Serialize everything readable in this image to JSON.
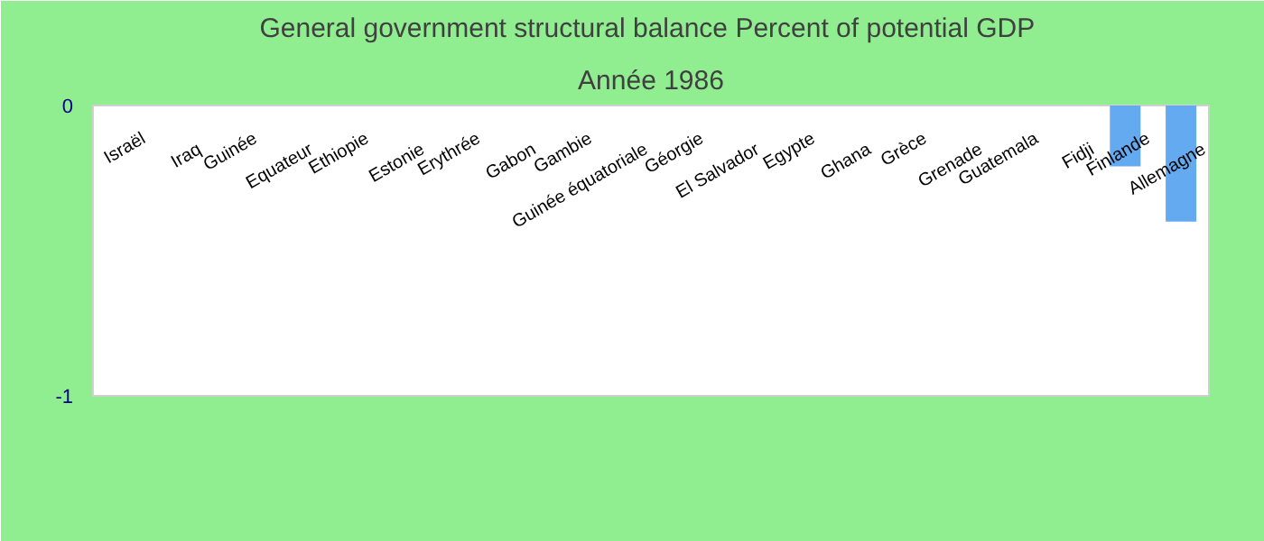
{
  "chart_data": {
    "type": "bar",
    "title": "General government structural balance  Percent of potential GDP",
    "subtitle": "Année 1986",
    "categories": [
      "Israël",
      "Iraq",
      "Guinée",
      "Equateur",
      "Ethiopie",
      "Estonie",
      "Erythrée",
      "Gabon",
      "Gambie",
      "Guinée équatoriale",
      "Géorgie",
      "El Salvador",
      "Egypte",
      "Ghana",
      "Grèce",
      "Grenade",
      "Guatemala",
      "Fidji",
      "Finlande",
      "Allemagne"
    ],
    "values": [
      null,
      null,
      null,
      null,
      null,
      null,
      null,
      null,
      null,
      null,
      null,
      null,
      null,
      null,
      null,
      null,
      null,
      null,
      -0.21,
      -0.4
    ],
    "color": "#64aaf0",
    "ylim": [
      -1,
      0
    ],
    "yticks": [
      -1,
      0
    ],
    "grid": false
  }
}
